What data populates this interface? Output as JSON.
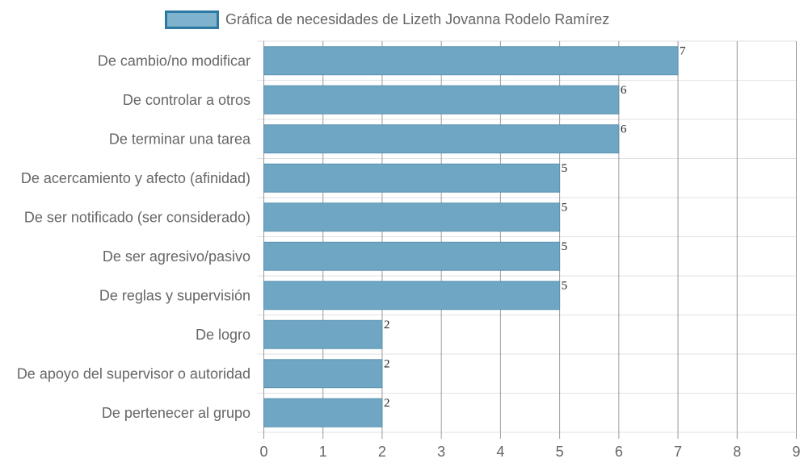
{
  "chart_data": {
    "type": "bar",
    "orientation": "horizontal",
    "categories": [
      "De cambio/no modificar",
      "De controlar a otros",
      "De terminar una tarea",
      "De acercamiento y afecto (afinidad)",
      "De ser notificado (ser considerado)",
      "De ser agresivo/pasivo",
      "De reglas y supervisión",
      "De logro",
      "De apoyo del supervisor o autoridad",
      "De pertenecer al grupo"
    ],
    "series": [
      {
        "name": "Gráfica de necesidades de Lizeth Jovanna Rodelo Ramírez",
        "values": [
          7,
          6,
          6,
          5,
          5,
          5,
          5,
          2,
          2,
          2
        ]
      }
    ],
    "xlim": [
      0,
      9
    ],
    "x_ticks": [
      "0",
      "1",
      "2",
      "3",
      "4",
      "5",
      "6",
      "7",
      "8",
      "9"
    ],
    "grid": true,
    "legend_position": "top",
    "data_labels": true,
    "colors": {
      "bar_fill": "#6ea6c4",
      "bar_border": "#5a91b0",
      "legend_fill": "#7fb2cd",
      "legend_border": "#2c7aa3",
      "grid_vertical": "#888888",
      "grid_horizontal": "#e2e2e2",
      "text": "#666666",
      "value_text": "#222222"
    }
  }
}
